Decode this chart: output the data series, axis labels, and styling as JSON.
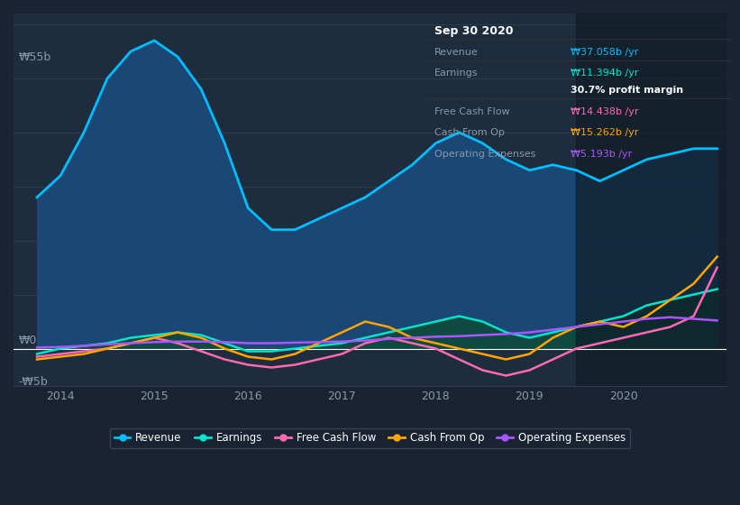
{
  "bg_color": "#1a2332",
  "plot_bg_color": "#1e2d3d",
  "grid_color": "#2a3d52",
  "text_color": "#8899aa",
  "title_color": "#ffffff",
  "ylim": [
    -7,
    62
  ],
  "ylabel_top": "₩55b",
  "ylabel_zero": "₩0",
  "ylabel_neg": "-₩5b",
  "x_ticks": [
    2014,
    2015,
    2016,
    2017,
    2018,
    2019,
    2020
  ],
  "tooltip_title": "Sep 30 2020",
  "tooltip_rows": [
    {
      "label": "Revenue",
      "value": "₩37.058b /yr",
      "color": "#00bfff"
    },
    {
      "label": "Earnings",
      "value": "₩11.394b /yr",
      "color": "#00e5cc"
    },
    {
      "label": "",
      "value": "30.7% profit margin",
      "color": "#ffffff"
    },
    {
      "label": "Free Cash Flow",
      "value": "₩14.438b /yr",
      "color": "#ff69b4"
    },
    {
      "label": "Cash From Op",
      "value": "₩15.262b /yr",
      "color": "#ffa500"
    },
    {
      "label": "Operating Expenses",
      "value": "₩5.193b /yr",
      "color": "#aa55ff"
    }
  ],
  "legend": [
    {
      "label": "Revenue",
      "color": "#00bfff"
    },
    {
      "label": "Earnings",
      "color": "#00e5cc"
    },
    {
      "label": "Free Cash Flow",
      "color": "#ff69b4"
    },
    {
      "label": "Cash From Op",
      "color": "#ffa500"
    },
    {
      "label": "Operating Expenses",
      "color": "#aa55ff"
    }
  ],
  "x": [
    2013.75,
    2014.0,
    2014.25,
    2014.5,
    2014.75,
    2015.0,
    2015.25,
    2015.5,
    2015.75,
    2016.0,
    2016.25,
    2016.5,
    2016.75,
    2017.0,
    2017.25,
    2017.5,
    2017.75,
    2018.0,
    2018.25,
    2018.5,
    2018.75,
    2019.0,
    2019.25,
    2019.5,
    2019.75,
    2020.0,
    2020.25,
    2020.5,
    2020.75,
    2021.0
  ],
  "revenue": [
    28,
    32,
    40,
    50,
    55,
    57,
    54,
    48,
    38,
    26,
    22,
    22,
    24,
    26,
    28,
    31,
    34,
    38,
    40,
    38,
    35,
    33,
    34,
    33,
    31,
    33,
    35,
    36,
    37,
    37
  ],
  "earnings": [
    -1,
    0,
    0.5,
    1,
    2,
    2.5,
    3,
    2.5,
    1,
    -0.5,
    -0.5,
    0,
    0.5,
    1,
    2,
    3,
    4,
    5,
    6,
    5,
    3,
    2,
    3,
    4,
    5,
    6,
    8,
    9,
    10,
    11
  ],
  "free_cash_flow": [
    -1.5,
    -1,
    -0.5,
    0,
    1,
    2,
    1,
    -0.5,
    -2,
    -3,
    -3.5,
    -3,
    -2,
    -1,
    1,
    2,
    1,
    0,
    -2,
    -4,
    -5,
    -4,
    -2,
    0,
    1,
    2,
    3,
    4,
    6,
    15
  ],
  "cash_from_op": [
    -2,
    -1.5,
    -1,
    0,
    1,
    2,
    3,
    2,
    0,
    -1.5,
    -2,
    -1,
    1,
    3,
    5,
    4,
    2,
    1,
    0,
    -1,
    -2,
    -1,
    2,
    4,
    5,
    4,
    6,
    9,
    12,
    17
  ],
  "operating_expenses": [
    0.2,
    0.3,
    0.5,
    0.8,
    1.0,
    1.2,
    1.3,
    1.3,
    1.2,
    1.0,
    1.0,
    1.1,
    1.2,
    1.3,
    1.5,
    1.8,
    2.0,
    2.2,
    2.3,
    2.5,
    2.7,
    3.0,
    3.5,
    4.0,
    4.5,
    5.0,
    5.5,
    5.8,
    5.5,
    5.2
  ]
}
